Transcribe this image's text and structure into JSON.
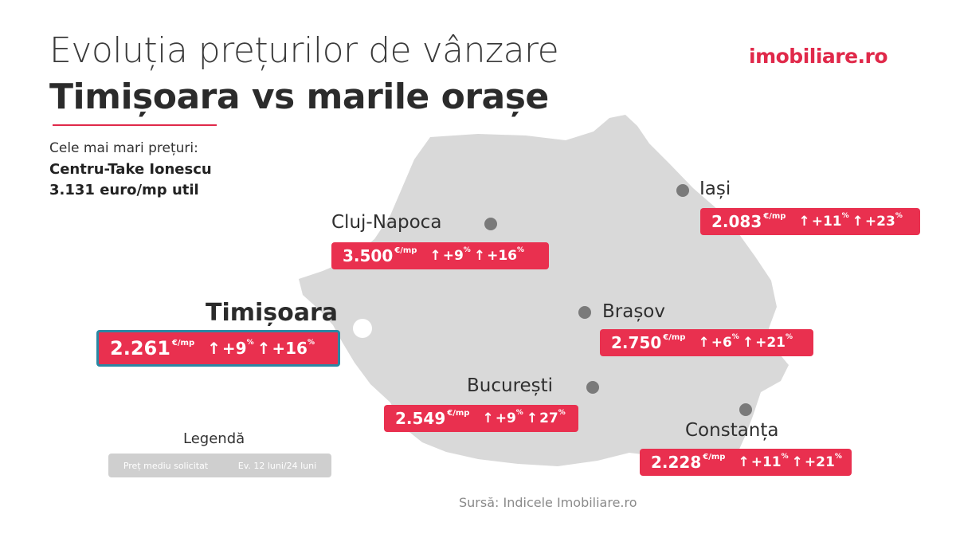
{
  "title_line1": "Evoluția prețurilor de vânzare",
  "title_line2": "Timișoara vs marile orașe",
  "logo": "imobiliare.ro",
  "highlight": {
    "caption": "Cele mai mari prețuri:",
    "zone": "Centru-Take Ionescu",
    "price": "3.131 euro/mp util"
  },
  "colors": {
    "accent": "#e9304f",
    "map_fill": "#d9d9d9",
    "dot": "#7a7a7a",
    "highlight_border": "#2a87a3"
  },
  "icons": {
    "up": "up-arrow-icon"
  },
  "cities": [
    {
      "id": "timisoara",
      "name": "Timișoara",
      "price": "2.261",
      "unit": "€/mp",
      "arrow1": "↑",
      "change_12m": "+9",
      "pct1": "%",
      "arrow2": "↑",
      "change_24m": "+16",
      "pct2": "%"
    },
    {
      "id": "cluj",
      "name": "Cluj-Napoca",
      "price": "3.500",
      "unit": "€/mp",
      "arrow1": "↑",
      "change_12m": "+9",
      "pct1": "%",
      "arrow2": "↑",
      "change_24m": "+16",
      "pct2": "%"
    },
    {
      "id": "iasi",
      "name": "Iași",
      "price": "2.083",
      "unit": "€/mp",
      "arrow1": "↑",
      "change_12m": "+11",
      "pct1": "%",
      "arrow2": "↑",
      "change_24m": "+23",
      "pct2": "%"
    },
    {
      "id": "brasov",
      "name": "Brașov",
      "price": "2.750",
      "unit": "€/mp",
      "arrow1": "↑",
      "change_12m": "+6",
      "pct1": "%",
      "arrow2": "↑",
      "change_24m": "+21",
      "pct2": "%"
    },
    {
      "id": "bucuresti",
      "name": "București",
      "price": "2.549",
      "unit": "€/mp",
      "arrow1": "↑",
      "change_12m": "+9",
      "pct1": "%",
      "arrow2": "↑",
      "change_24m": "27",
      "pct2": "%"
    },
    {
      "id": "constanta",
      "name": "Constanța",
      "price": "2.228",
      "unit": "€/mp",
      "arrow1": "↑",
      "change_12m": "+11",
      "pct1": "%",
      "arrow2": "↑",
      "change_24m": "+21",
      "pct2": "%"
    }
  ],
  "legend": {
    "title": "Legendă",
    "item_price": "Preț mediu solicitat",
    "item_change": "Ev. 12 luni/24 luni"
  },
  "source": "Sursă: Indicele Imobiliare.ro"
}
